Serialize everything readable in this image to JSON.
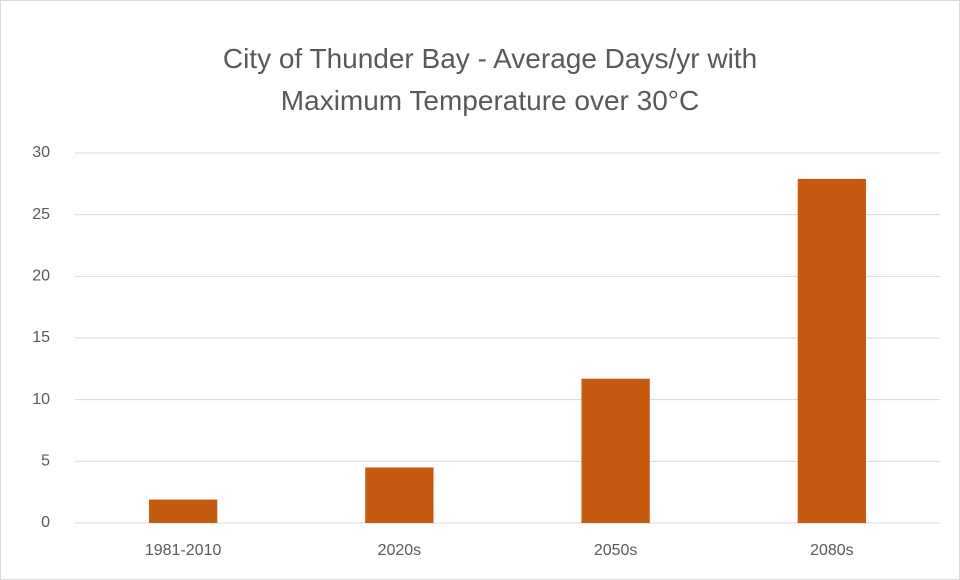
{
  "chart_data": {
    "type": "bar",
    "title": "City of Thunder Bay - Average Days/yr with Maximum Temperature over 30°C",
    "categories": [
      "1981-2010",
      "2020s",
      "2050s",
      "2080s"
    ],
    "values": [
      1.9,
      4.5,
      11.7,
      27.9
    ],
    "color": "#c55a11",
    "ylim": [
      0,
      30
    ],
    "yticks": [
      0,
      5,
      10,
      15,
      20,
      25,
      30
    ],
    "grid": true
  }
}
